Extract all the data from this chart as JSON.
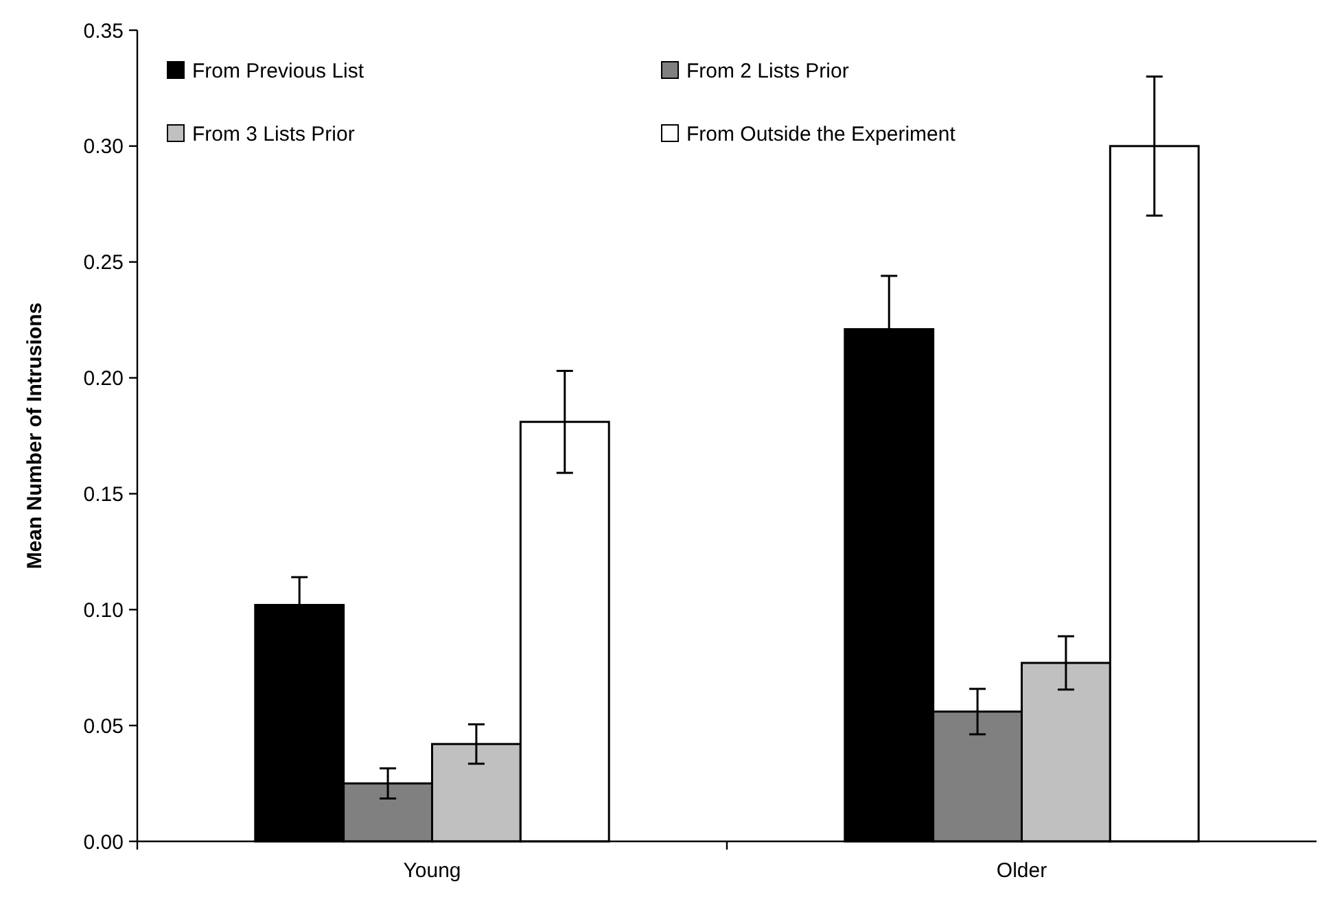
{
  "chart_data": {
    "type": "bar",
    "ylabel": "Mean Number of Intrusions",
    "categories": [
      "Young",
      "Older"
    ],
    "series": [
      {
        "name": "From Previous List",
        "color": "#000000",
        "values": [
          0.102,
          0.221
        ],
        "errors": [
          0.012,
          0.023
        ]
      },
      {
        "name": "From 2 Lists Prior",
        "color": "#808080",
        "values": [
          0.025,
          0.056
        ],
        "errors": [
          0.0065,
          0.0098
        ]
      },
      {
        "name": "From 3 Lists Prior",
        "color": "#c0c0c0",
        "values": [
          0.042,
          0.077
        ],
        "errors": [
          0.0085,
          0.0115
        ]
      },
      {
        "name": "From Outside the Experiment",
        "color": "#ffffff",
        "values": [
          0.181,
          0.3
        ],
        "errors": [
          0.022,
          0.03
        ]
      }
    ],
    "ylim": [
      0,
      0.35
    ],
    "yticks": [
      {
        "value": 0,
        "label": "0.00"
      },
      {
        "value": 0.05,
        "label": "0.05"
      },
      {
        "value": 0.1,
        "label": "0.10"
      },
      {
        "value": 0.15,
        "label": "0.15"
      },
      {
        "value": 0.2,
        "label": "0.20"
      },
      {
        "value": 0.25,
        "label": "0.25"
      },
      {
        "value": 0.3,
        "label": "0.30"
      },
      {
        "value": 0.35,
        "label": "0.35"
      }
    ],
    "grid": false,
    "legend": "top left"
  }
}
